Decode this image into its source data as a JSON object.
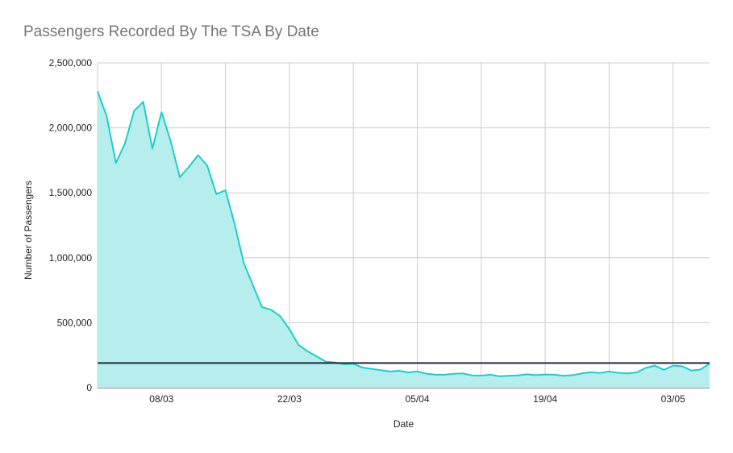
{
  "colors": {
    "line": "#1fcdc8",
    "area": "#b6eeee",
    "grid": "#cccccc",
    "reference_line": "#1f2a38",
    "title": "#757575",
    "text": "#222222"
  },
  "chart_data": {
    "type": "area",
    "title": "Passengers Recorded By The TSA By Date",
    "xlabel": "Date",
    "ylabel": "Number of Passengers",
    "ylim": [
      0,
      2500000
    ],
    "y_ticks": [
      0,
      500000,
      1000000,
      1500000,
      2000000,
      2500000
    ],
    "y_tick_labels": [
      "0",
      "500,000",
      "1,000,000",
      "1,500,000",
      "2,000,000",
      "2,500,000"
    ],
    "x_range": [
      "01/03",
      "10/05"
    ],
    "x_tick_labels": [
      "08/03",
      "22/03",
      "05/04",
      "19/04",
      "03/05"
    ],
    "x_tick_index": [
      7,
      21,
      35,
      49,
      63
    ],
    "grid": true,
    "reference_line": {
      "value": 190000
    },
    "series": [
      {
        "name": "Number of Passengers",
        "values": [
          2280000,
          2090000,
          1730000,
          1880000,
          2130000,
          2200000,
          1840000,
          2120000,
          1900000,
          1620000,
          1700000,
          1790000,
          1710000,
          1490000,
          1520000,
          1260000,
          960000,
          790000,
          620000,
          600000,
          550000,
          450000,
          330000,
          280000,
          240000,
          200000,
          195000,
          180000,
          185000,
          155000,
          145000,
          135000,
          125000,
          130000,
          118000,
          125000,
          108000,
          100000,
          100000,
          108000,
          110000,
          95000,
          93000,
          100000,
          88000,
          92000,
          95000,
          103000,
          97000,
          102000,
          100000,
          92000,
          97000,
          110000,
          120000,
          113000,
          125000,
          115000,
          110000,
          118000,
          152000,
          170000,
          138000,
          170000,
          165000,
          132000,
          140000,
          185000
        ]
      }
    ]
  }
}
